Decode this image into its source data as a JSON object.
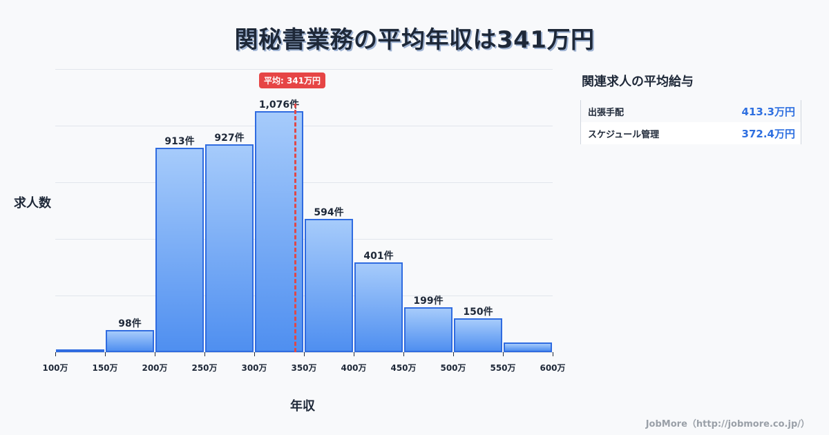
{
  "title": "関秘書業務の平均年収は341万円",
  "axis": {
    "ylabel": "求人数",
    "xlabel": "年収"
  },
  "average_badge": "平均: 341万円",
  "side": {
    "title": "関連求人の平均給与",
    "items": [
      {
        "name": "出張手配",
        "value": "413.3万円"
      },
      {
        "name": "スケジュール管理",
        "value": "372.4万円"
      }
    ]
  },
  "footer": "JobMore（http://jobmore.co.jp/）",
  "chart_data": {
    "type": "bar",
    "title": "関秘書業務の平均年収は341万円",
    "xlabel": "年収",
    "ylabel": "求人数",
    "categories": [
      "100-150万",
      "150-200万",
      "200-250万",
      "250-300万",
      "300-350万",
      "350-400万",
      "400-450万",
      "450-500万",
      "500-550万",
      "550-600万"
    ],
    "values": [
      4,
      98,
      913,
      927,
      1076,
      594,
      401,
      199,
      150,
      43
    ],
    "labels": [
      "",
      "98件",
      "913件",
      "927件",
      "1,076件",
      "594件",
      "401件",
      "199件",
      "150件",
      ""
    ],
    "x_ticks": [
      "100万",
      "150万",
      "200万",
      "250万",
      "300万",
      "350万",
      "400万",
      "450万",
      "500万",
      "550万",
      "600万"
    ],
    "average": 341,
    "average_label": "平均: 341万円",
    "ylim": [
      0,
      1263
    ],
    "grid": true
  }
}
